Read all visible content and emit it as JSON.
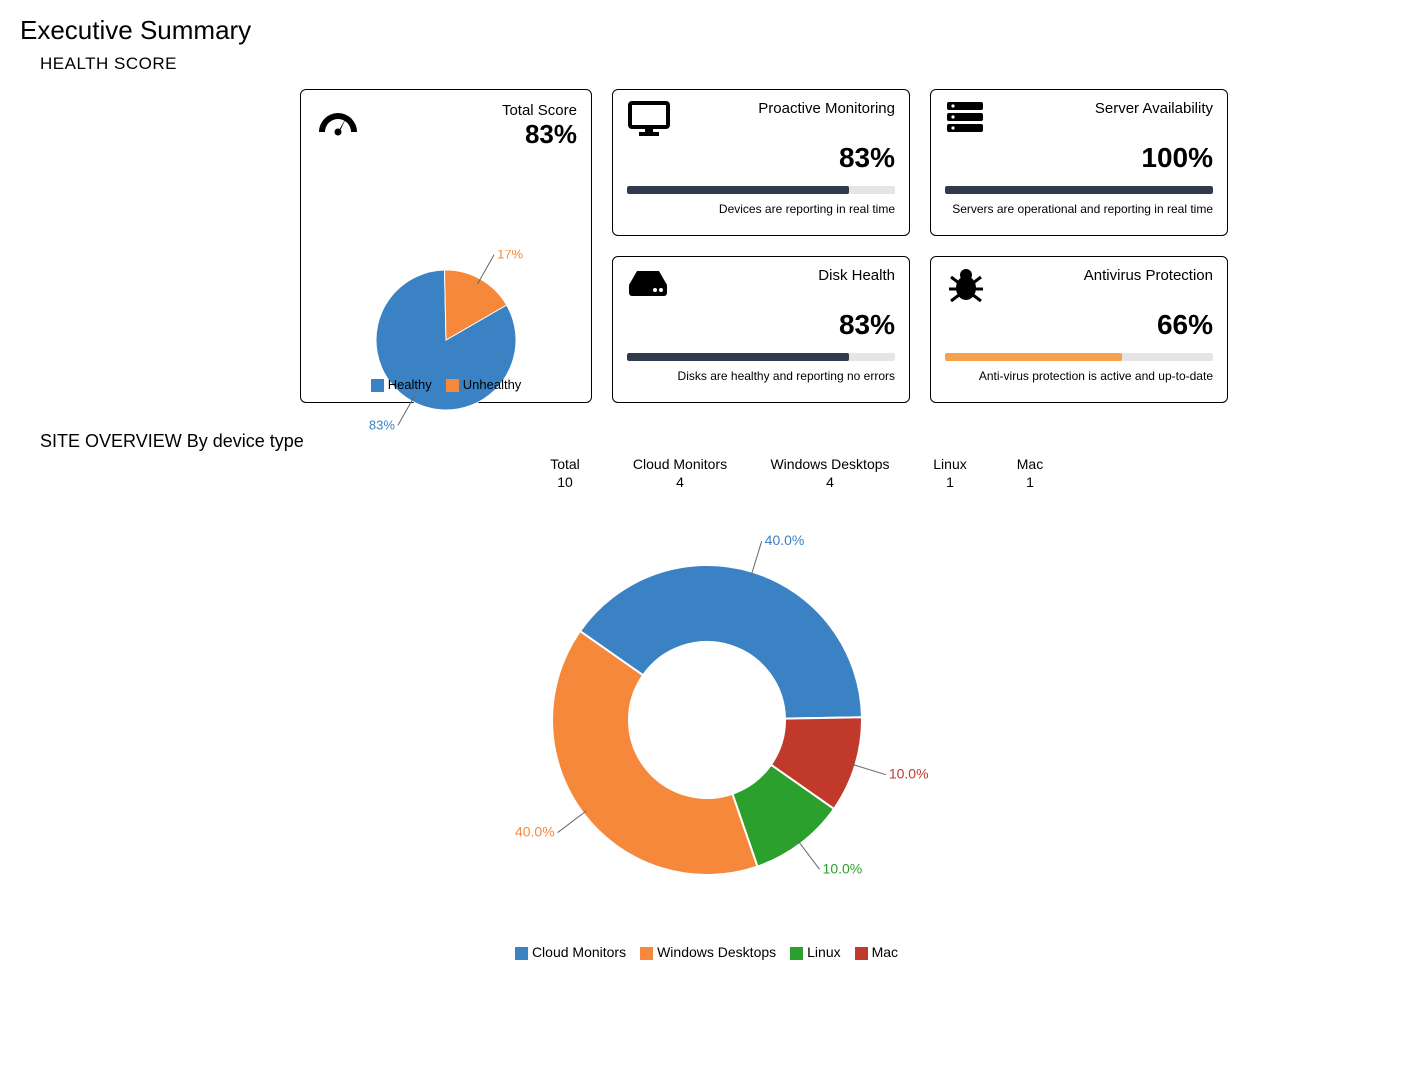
{
  "page_title": "Executive Summary",
  "health_section_title": "HEALTH SCORE",
  "colors": {
    "blue": "#3b82c4",
    "orange": "#f5883b",
    "green": "#2ca02c",
    "red": "#c0392b",
    "bar_dark": "#2f3b4c",
    "bar_orange": "#f5a04e",
    "bar_bg": "#e5e5e5"
  },
  "total_score": {
    "title": "Total Score",
    "value": "83%",
    "pie": {
      "type": "pie",
      "radius": 70,
      "slices": [
        {
          "label": "Healthy",
          "pct": 83,
          "color": "#3b82c4",
          "callout": "83%"
        },
        {
          "label": "Unhealthy",
          "pct": 17,
          "color": "#f5883b",
          "callout": "17%"
        }
      ]
    },
    "legend": [
      {
        "label": "Healthy",
        "color": "#3b82c4"
      },
      {
        "label": "Unhealthy",
        "color": "#f5883b"
      }
    ]
  },
  "metric_cards": [
    {
      "id": "proactive",
      "icon": "monitor",
      "title": "Proactive Monitoring",
      "value": "83%",
      "bar_pct": 83,
      "bar_color": "#2f3b4c",
      "desc": "Devices are reporting in real time"
    },
    {
      "id": "disk",
      "icon": "disk",
      "title": "Disk Health",
      "value": "83%",
      "bar_pct": 83,
      "bar_color": "#2f3b4c",
      "desc": "Disks are healthy and reporting no errors"
    },
    {
      "id": "server",
      "icon": "server",
      "title": "Server Availability",
      "value": "100%",
      "bar_pct": 100,
      "bar_color": "#2f3b4c",
      "desc": "Servers are operational and reporting in real time"
    },
    {
      "id": "antivirus",
      "icon": "bug",
      "title": "Antivirus Protection",
      "value": "66%",
      "bar_pct": 66,
      "bar_color": "#f5a04e",
      "desc": "Anti-virus protection is active and up-to-date"
    }
  ],
  "site_overview": {
    "title": "SITE OVERVIEW By device type",
    "counts": [
      {
        "label": "Total",
        "value": "10"
      },
      {
        "label": "Cloud Monitors",
        "value": "4"
      },
      {
        "label": "Windows Desktops",
        "value": "4"
      },
      {
        "label": "Linux",
        "value": "1"
      },
      {
        "label": "Mac",
        "value": "1"
      }
    ],
    "donut": {
      "type": "donut",
      "outer_radius": 155,
      "inner_radius": 78,
      "start_angle_deg": -55,
      "slices": [
        {
          "label": "Cloud Monitors",
          "pct": 40,
          "color": "#3b82c4",
          "callout": "40.0%"
        },
        {
          "label": "Mac",
          "pct": 10,
          "color": "#c0392b",
          "callout": "10.0%"
        },
        {
          "label": "Linux",
          "pct": 10,
          "color": "#2ca02c",
          "callout": "10.0%"
        },
        {
          "label": "Windows Desktops",
          "pct": 40,
          "color": "#f5883b",
          "callout": "40.0%"
        }
      ]
    },
    "legend": [
      {
        "label": "Cloud Monitors",
        "color": "#3b82c4"
      },
      {
        "label": "Windows Desktops",
        "color": "#f5883b"
      },
      {
        "label": "Linux",
        "color": "#2ca02c"
      },
      {
        "label": "Mac",
        "color": "#c0392b"
      }
    ]
  }
}
